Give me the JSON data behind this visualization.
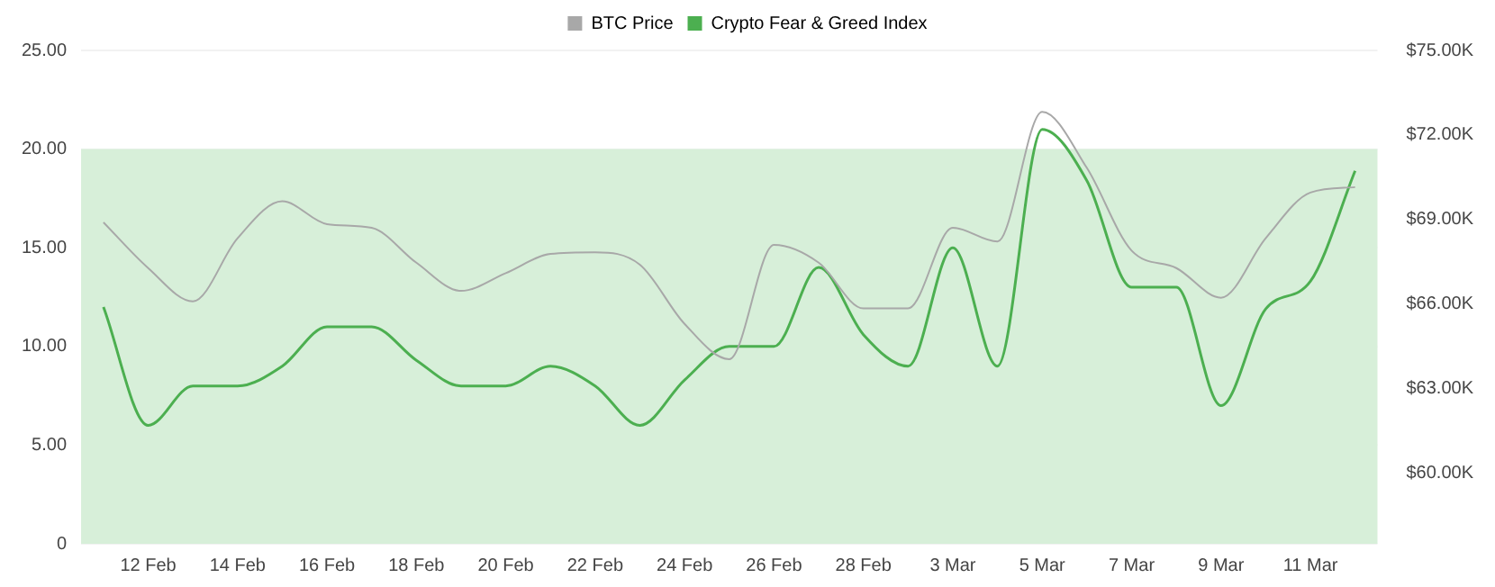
{
  "chart_data": {
    "type": "line",
    "categories": [
      null,
      "12 Feb",
      null,
      "14 Feb",
      null,
      "16 Feb",
      null,
      "18 Feb",
      null,
      "20 Feb",
      null,
      "22 Feb",
      null,
      "24 Feb",
      null,
      "26 Feb",
      null,
      "28 Feb",
      null,
      "3 Mar",
      null,
      "5 Mar",
      null,
      "7 Mar",
      null,
      "9 Mar",
      null,
      "11 Mar",
      null
    ],
    "series": [
      {
        "name": "BTC Price",
        "color": "#a8a8a8",
        "axis": "y2",
        "values": [
          68900,
          67280,
          66100,
          68340,
          69650,
          68840,
          68710,
          67470,
          66470,
          67100,
          67780,
          67840,
          67400,
          65300,
          64050,
          68100,
          67470,
          65850,
          65850,
          68710,
          68220,
          72820,
          70830,
          67900,
          67280,
          66230,
          68340,
          69960,
          70150
        ]
      },
      {
        "name": "Crypto Fear & Greed Index",
        "color": "#4caf50",
        "axis": "y",
        "values": [
          12,
          6,
          8,
          8,
          9,
          11,
          11,
          9.3,
          8,
          8,
          9,
          8,
          6,
          8.3,
          10,
          10,
          14,
          10.6,
          9,
          15,
          9,
          21,
          18.4,
          13,
          13,
          7,
          11.9,
          13.3,
          18.9
        ]
      }
    ],
    "ylim": [
      0,
      25
    ],
    "yticks": [
      {
        "value": 0,
        "label": "0"
      },
      {
        "value": 5,
        "label": "5.00"
      },
      {
        "value": 10,
        "label": "10.00"
      },
      {
        "value": 15,
        "label": "15.00"
      },
      {
        "value": 20,
        "label": "20.00"
      },
      {
        "value": 25,
        "label": "25.00"
      }
    ],
    "y2lim": [
      57500,
      75000
    ],
    "y2ticks": [
      {
        "value": 60000,
        "label": "$60.00K"
      },
      {
        "value": 63000,
        "label": "$63.00K"
      },
      {
        "value": 66000,
        "label": "$66.00K"
      },
      {
        "value": 69000,
        "label": "$69.00K"
      },
      {
        "value": 72000,
        "label": "$72.00K"
      },
      {
        "value": 75000,
        "label": "$75.00K"
      }
    ],
    "bands": [
      {
        "axis": "y",
        "from": 0,
        "to": 20,
        "color": "#d7efd9"
      }
    ],
    "grid": "y",
    "legend": "top",
    "marker": "none",
    "line_style": "solid"
  }
}
